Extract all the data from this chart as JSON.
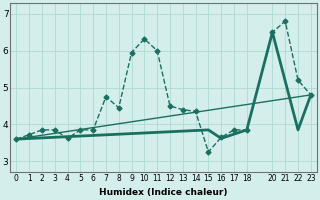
{
  "xlabel": "Humidex (Indice chaleur)",
  "ylabel": "",
  "bg_color": "#d4eeec",
  "grid_color": "#afd8d4",
  "line_color": "#1a7060",
  "xlim": [
    -0.5,
    23.5
  ],
  "ylim": [
    2.7,
    7.3
  ],
  "yticks": [
    3,
    4,
    5,
    6,
    7
  ],
  "xticks": [
    0,
    1,
    2,
    3,
    4,
    5,
    6,
    7,
    8,
    9,
    10,
    11,
    12,
    13,
    14,
    15,
    16,
    17,
    18,
    20,
    21,
    22,
    23
  ],
  "series": [
    {
      "x": [
        0,
        1,
        2,
        3,
        4,
        5,
        6,
        7,
        8,
        9,
        10,
        11,
        12,
        13,
        14,
        15,
        16,
        17,
        18,
        20,
        21,
        22,
        23
      ],
      "y": [
        3.6,
        3.72,
        3.85,
        3.85,
        3.62,
        3.85,
        3.85,
        4.75,
        4.45,
        5.95,
        6.32,
        6.0,
        4.5,
        4.4,
        4.35,
        3.25,
        3.65,
        3.85,
        3.85,
        6.5,
        6.8,
        5.2,
        4.8
      ],
      "linestyle": "--",
      "linewidth": 1.0,
      "marker": "D",
      "markersize": 2.5
    },
    {
      "x": [
        0,
        15,
        16,
        18,
        20,
        22,
        23
      ],
      "y": [
        3.6,
        3.85,
        3.62,
        3.85,
        6.5,
        3.85,
        4.8
      ],
      "linestyle": "-",
      "linewidth": 2.0,
      "marker": null,
      "markersize": 0
    },
    {
      "x": [
        0,
        23
      ],
      "y": [
        3.6,
        4.8
      ],
      "linestyle": "-",
      "linewidth": 1.0,
      "marker": null,
      "markersize": 0
    }
  ]
}
